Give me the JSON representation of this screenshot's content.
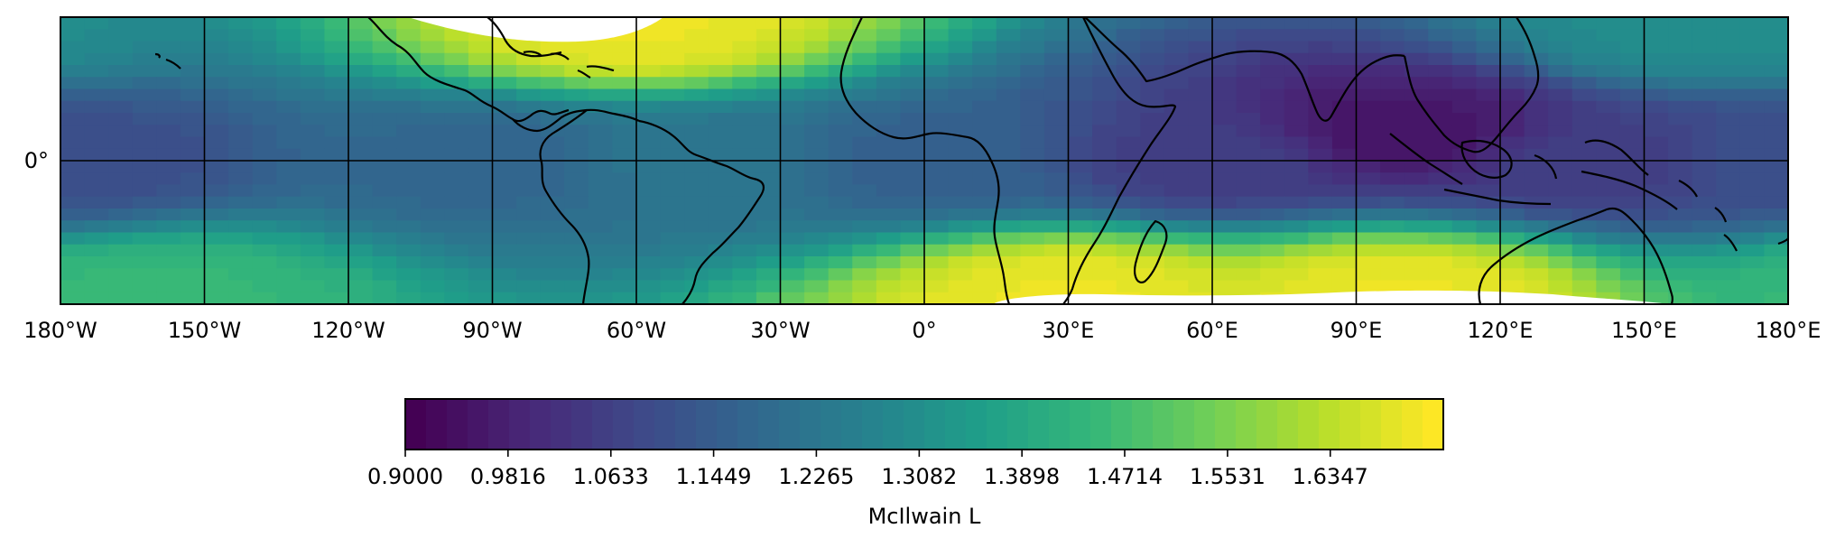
{
  "chart_data": {
    "type": "heatmap",
    "projection": "PlateCarree",
    "quantity": "McIlwain L",
    "xlim": [
      -180,
      180
    ],
    "x_ticks": [
      {
        "value": -180,
        "label": "180°W"
      },
      {
        "value": -150,
        "label": "150°W"
      },
      {
        "value": -120,
        "label": "120°W"
      },
      {
        "value": -90,
        "label": "90°W"
      },
      {
        "value": -60,
        "label": "60°W"
      },
      {
        "value": -30,
        "label": "30°W"
      },
      {
        "value": 0,
        "label": "0°"
      },
      {
        "value": 30,
        "label": "30°E"
      },
      {
        "value": 60,
        "label": "60°E"
      },
      {
        "value": 90,
        "label": "90°E"
      },
      {
        "value": 120,
        "label": "120°E"
      },
      {
        "value": 150,
        "label": "150°E"
      },
      {
        "value": 180,
        "label": "180°E"
      }
    ],
    "y_ticks": [
      {
        "value": 0,
        "label": "0°"
      }
    ],
    "ylim": [
      -30,
      30
    ],
    "grid": true,
    "colormap": "viridis",
    "colorbar": {
      "label": "McIlwain L",
      "orientation": "horizontal",
      "range": [
        0.9,
        1.7245
      ],
      "ticks": [
        "0.9000",
        "0.9816",
        "1.0633",
        "1.1449",
        "1.2265",
        "1.3082",
        "1.3898",
        "1.4714",
        "1.5531",
        "1.6347"
      ],
      "tick_values": [
        0.9,
        0.9816,
        1.0633,
        1.1449,
        1.2265,
        1.3082,
        1.3898,
        1.4714,
        1.5531,
        1.6347
      ],
      "levels": 50
    },
    "field_samples": [
      {
        "lon": -180,
        "lat": 0,
        "value": 1.1
      },
      {
        "lon": -90,
        "lat": 0,
        "value": 1.17
      },
      {
        "lon": -45,
        "lat": 0,
        "value": 1.22
      },
      {
        "lon": 0,
        "lat": 0,
        "value": 1.15
      },
      {
        "lon": 60,
        "lat": 0,
        "value": 1.05
      },
      {
        "lon": 100,
        "lat": 6,
        "value": 0.95
      },
      {
        "lon": 140,
        "lat": 0,
        "value": 1.05
      },
      {
        "lon": -60,
        "lat": 28,
        "value": 1.7
      },
      {
        "lon": 30,
        "lat": -28,
        "value": 1.7
      },
      {
        "lon": 100,
        "lat": -28,
        "value": 1.7
      },
      {
        "lon": 160,
        "lat": 28,
        "value": 1.3
      },
      {
        "lon": -160,
        "lat": -28,
        "value": 1.45
      }
    ],
    "colors": {
      "viridis": [
        "#440154",
        "#482878",
        "#3e4989",
        "#31688e",
        "#26828e",
        "#1f9e89",
        "#35b779",
        "#6ece58",
        "#b5de2b",
        "#fde725"
      ],
      "coastline": "#000000",
      "gridline": "#000000",
      "missing": "#ffffff"
    }
  }
}
